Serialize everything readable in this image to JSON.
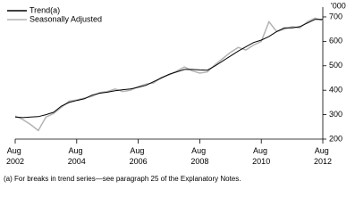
{
  "chart_data": {
    "type": "line",
    "y_unit": "'000",
    "footnote": "(a) For breaks in trend series—see paragraph 25 of the Explanatory Notes.",
    "x": [
      "Aug 2002",
      "Nov 2002",
      "Feb 2003",
      "May 2003",
      "Aug 2003",
      "Nov 2003",
      "Feb 2004",
      "May 2004",
      "Aug 2004",
      "Nov 2004",
      "Feb 2005",
      "May 2005",
      "Aug 2005",
      "Nov 2005",
      "Feb 2006",
      "May 2006",
      "Aug 2006",
      "Nov 2006",
      "Feb 2007",
      "May 2007",
      "Aug 2007",
      "Nov 2007",
      "Feb 2008",
      "May 2008",
      "Aug 2008",
      "Nov 2008",
      "Feb 2009",
      "May 2009",
      "Aug 2009",
      "Nov 2009",
      "Feb 2010",
      "May 2010",
      "Aug 2010",
      "Nov 2010",
      "Feb 2011",
      "May 2011",
      "Aug 2011",
      "Nov 2011",
      "Feb 2012",
      "May 2012",
      "Aug 2012"
    ],
    "series": [
      {
        "name": "Trend(a)",
        "color": "#000000",
        "values": [
          290,
          288,
          290,
          292,
          300,
          310,
          335,
          350,
          358,
          365,
          380,
          388,
          392,
          398,
          402,
          405,
          412,
          420,
          435,
          450,
          465,
          475,
          485,
          485,
          483,
          482,
          500,
          520,
          540,
          560,
          578,
          595,
          605,
          620,
          640,
          655,
          655,
          660,
          675,
          690,
          690
        ]
      },
      {
        "name": "Seasonally Adjusted",
        "color": "#b3b3b3",
        "values": [
          295,
          280,
          260,
          235,
          290,
          305,
          330,
          355,
          360,
          368,
          375,
          390,
          395,
          405,
          395,
          400,
          415,
          425,
          430,
          452,
          463,
          478,
          495,
          480,
          470,
          475,
          505,
          530,
          555,
          575,
          565,
          585,
          600,
          680,
          640,
          650,
          660,
          655,
          680,
          695,
          685
        ]
      }
    ],
    "xticks": [
      "Aug 2002",
      "Aug 2004",
      "Aug 2006",
      "Aug 2008",
      "Aug 2010",
      "Aug 2012"
    ],
    "ylim": [
      200,
      740
    ],
    "yticks": [
      200,
      300,
      400,
      500,
      600,
      700
    ],
    "legend": "top-left"
  }
}
